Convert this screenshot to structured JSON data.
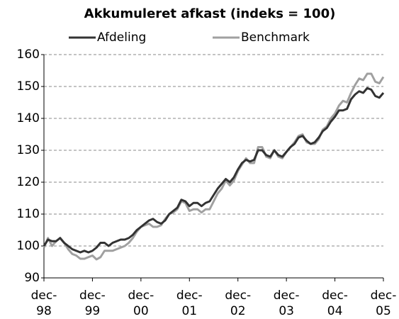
{
  "chart_data": {
    "type": "line",
    "title": "Akkumuleret afkast (indeks = 100)",
    "categories": [
      "dec-98",
      null,
      null,
      null,
      null,
      null,
      null,
      null,
      null,
      null,
      null,
      null,
      "dec-99",
      null,
      null,
      null,
      null,
      null,
      null,
      null,
      null,
      null,
      null,
      null,
      "dec-00",
      null,
      null,
      null,
      null,
      null,
      null,
      null,
      null,
      null,
      null,
      null,
      "dec-01",
      null,
      null,
      null,
      null,
      null,
      null,
      null,
      null,
      null,
      null,
      null,
      "dec-02",
      null,
      null,
      null,
      null,
      null,
      null,
      null,
      null,
      null,
      null,
      null,
      "dec-03",
      null,
      null,
      null,
      null,
      null,
      null,
      null,
      null,
      null,
      null,
      null,
      "dec-04",
      null,
      null,
      null,
      null,
      null,
      null,
      null,
      null,
      null,
      null,
      null,
      "dec-05"
    ],
    "series": [
      {
        "name": "Afdeling",
        "color": "#333333",
        "values": [
          100,
          102,
          101.5,
          101.5,
          102.5,
          101,
          100,
          99,
          98.5,
          98,
          98.5,
          98,
          98.5,
          99.5,
          101,
          101,
          100,
          101,
          101.5,
          102,
          102,
          102.5,
          103.5,
          105,
          106,
          107,
          108,
          108.5,
          107.5,
          107,
          108,
          110,
          111,
          112,
          114.5,
          114,
          112.5,
          113.5,
          113.5,
          112.5,
          113.5,
          114,
          116,
          118,
          119.5,
          121,
          120,
          121.5,
          124,
          126,
          127,
          126.5,
          127,
          130,
          130,
          128.5,
          128,
          130,
          128.5,
          128,
          129.5,
          131,
          132,
          134,
          134.5,
          133,
          132,
          132.5,
          134,
          136,
          137,
          139,
          140.5,
          142.5,
          142.5,
          143,
          146,
          147.5,
          148.5,
          148,
          149.5,
          149,
          147,
          146.5,
          148
        ]
      },
      {
        "name": "Benchmark",
        "color": "#a0a0a0",
        "values": [
          99.5,
          102.5,
          100,
          101.5,
          102.5,
          101,
          99,
          97.5,
          97,
          96,
          96,
          96.5,
          97,
          95.8,
          96.5,
          98.5,
          98.5,
          98.5,
          99,
          99.5,
          100,
          101,
          102.5,
          104.5,
          106,
          106.5,
          107,
          106,
          106,
          106.5,
          108.5,
          110,
          110.5,
          111.5,
          114,
          113.5,
          111,
          111.5,
          111.5,
          110.5,
          111.5,
          111.5,
          114,
          116.5,
          118,
          120.5,
          119,
          120.5,
          123.5,
          125.5,
          127.5,
          126,
          126,
          131,
          131,
          128,
          127.5,
          130,
          128,
          127.5,
          129.5,
          131,
          132.5,
          134.5,
          135,
          132.5,
          132,
          132,
          133.5,
          136.5,
          137.5,
          140,
          141.5,
          144,
          145.5,
          145,
          148,
          150.5,
          152.5,
          152,
          154,
          154,
          151.5,
          151,
          153
        ]
      }
    ],
    "ylim": [
      90,
      160
    ],
    "yticks": [
      90,
      100,
      110,
      120,
      130,
      140,
      150,
      160
    ],
    "grid": true
  }
}
